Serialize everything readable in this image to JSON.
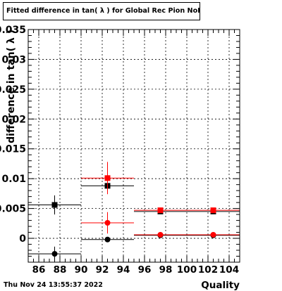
{
  "title": "Fitted difference in tan( λ ) for Global Rec Pion NoHits",
  "timestamp": "Thu Nov 24 13:55:37 2022",
  "chart_data": {
    "type": "scatter",
    "xlabel": "Quality",
    "ylabel": "difference in tan( λ )",
    "xlim": [
      85,
      105
    ],
    "ylim": [
      -0.004,
      0.035
    ],
    "x_ticks": [
      86,
      88,
      90,
      92,
      94,
      96,
      98,
      100,
      102,
      104
    ],
    "x_tick_labels": [
      "86",
      "88",
      "90",
      "92",
      "94",
      "96",
      "98",
      "100",
      "102",
      "104"
    ],
    "y_ticks": [
      0,
      0.005,
      0.01,
      0.015,
      0.02,
      0.025,
      0.03,
      0.035
    ],
    "y_tick_labels": [
      "0",
      "0.005",
      "0.01",
      "0.015",
      "0.02",
      "0.025",
      "0.03",
      "0.035"
    ],
    "grid": true,
    "series": [
      {
        "color": "#000000",
        "marker": "square",
        "points": [
          {
            "x": 87.5,
            "xlo": 85,
            "xhi": 90,
            "y": 0.0056,
            "yerr": 0.0016
          },
          {
            "x": 92.5,
            "xlo": 90,
            "xhi": 95,
            "y": 0.0088,
            "yerr": 0.0007
          },
          {
            "x": 97.5,
            "xlo": 95,
            "xhi": 100,
            "y": 0.0045,
            "yerr": 0.0003
          },
          {
            "x": 102.5,
            "xlo": 100,
            "xhi": 105,
            "y": 0.0045,
            "yerr": 0.0003
          }
        ]
      },
      {
        "color": "#ff0000",
        "marker": "square",
        "points": [
          {
            "x": 92.5,
            "xlo": 90,
            "xhi": 95,
            "y": 0.0101,
            "yerr": 0.0027
          },
          {
            "x": 97.5,
            "xlo": 95,
            "xhi": 100,
            "y": 0.0047,
            "yerr": 0.0003
          },
          {
            "x": 102.5,
            "xlo": 100,
            "xhi": 105,
            "y": 0.0047,
            "yerr": 0.0003
          }
        ]
      },
      {
        "color": "#000000",
        "marker": "circle",
        "points": [
          {
            "x": 87.5,
            "xlo": 85,
            "xhi": 90,
            "y": -0.0026,
            "yerr": 0.0012
          },
          {
            "x": 92.5,
            "xlo": 90,
            "xhi": 95,
            "y": -0.0002,
            "yerr": 0.0004
          },
          {
            "x": 97.5,
            "xlo": 95,
            "xhi": 100,
            "y": 0.0005,
            "yerr": 0.0003
          },
          {
            "x": 102.5,
            "xlo": 100,
            "xhi": 105,
            "y": 0.0005,
            "yerr": 0.0003
          }
        ]
      },
      {
        "color": "#ff0000",
        "marker": "circle",
        "points": [
          {
            "x": 92.5,
            "xlo": 90,
            "xhi": 95,
            "y": 0.0026,
            "yerr": 0.0018
          },
          {
            "x": 97.5,
            "xlo": 95,
            "xhi": 100,
            "y": 0.0006,
            "yerr": 0.0003
          },
          {
            "x": 102.5,
            "xlo": 100,
            "xhi": 105,
            "y": 0.0006,
            "yerr": 0.0003
          }
        ]
      }
    ]
  }
}
